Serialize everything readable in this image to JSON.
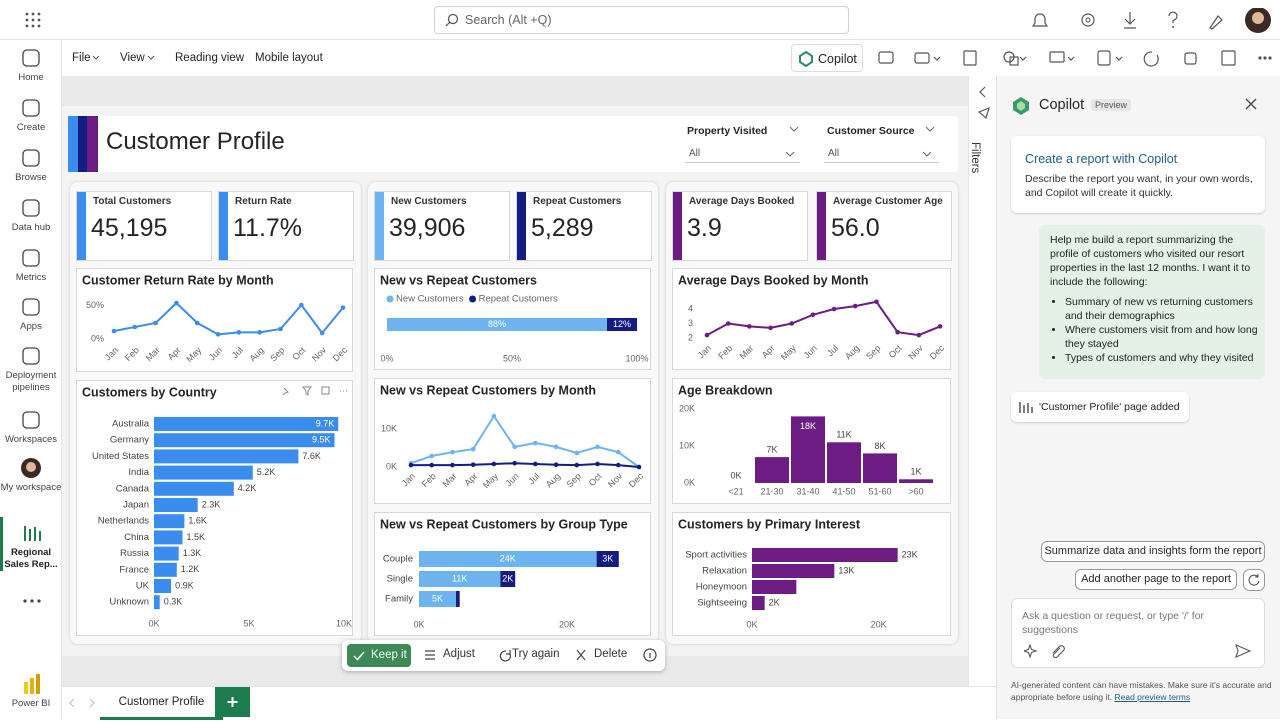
{
  "app": {
    "search": "Search (Alt +Q)",
    "brand": "Power BI"
  },
  "nav": [
    "Home",
    "Create",
    "Browse",
    "Data hub",
    "Metrics",
    "Apps",
    "Deployment pipelines",
    "Workspaces",
    "My workspace",
    "Regional Sales Rep..."
  ],
  "menu": [
    "File",
    "View",
    "Reading view",
    "Mobile layout"
  ],
  "copilot_button": "Copilot",
  "filters": "Filters",
  "tabs": [
    "Customer Profile"
  ],
  "actions": [
    "Keep it",
    "Adjust",
    "Try again",
    "Delete"
  ],
  "report": {
    "title": "Customer Profile",
    "slicers": [
      {
        "label": "Property Visited",
        "value": "All"
      },
      {
        "label": "Customer Source",
        "value": "All"
      }
    ],
    "kpis": [
      {
        "label": "Total Customers",
        "value": "45,195",
        "color": "#3b8ded"
      },
      {
        "label": "Return Rate",
        "value": "11.7%",
        "color": "#3b8ded"
      },
      {
        "label": "New Customers",
        "value": "39,906",
        "color": "#6cb4f0"
      },
      {
        "label": "Repeat Customers",
        "value": "5,289",
        "color": "#141c82"
      },
      {
        "label": "Average Days Booked",
        "value": "3.9",
        "color": "#6b1d84"
      },
      {
        "label": "Average Customer Age",
        "value": "56.0",
        "color": "#6b1d84"
      }
    ],
    "visuals": [
      {
        "title": "Customer Return Rate by Month",
        "type": "line",
        "markers": true,
        "categories": [
          "Jan",
          "Feb",
          "Mar",
          "Apr",
          "May",
          "Jun",
          "Jul",
          "Aug",
          "Sep",
          "Oct",
          "Nov",
          "Dec"
        ],
        "series": [
          {
            "color": "#3b8ded",
            "values": [
              12,
              18,
              24,
              54,
              24,
              7,
              10,
              10,
              15,
              51,
              9,
              47
            ]
          }
        ],
        "ylim": [
          0,
          60
        ],
        "yticks": [
          {
            "value": 0,
            "label": "0%"
          },
          {
            "value": 50,
            "label": "50%"
          }
        ]
      },
      {
        "title": "Customers by Country",
        "type": "barh",
        "categories": [
          "Australia",
          "Germany",
          "United States",
          "India",
          "Canada",
          "Japan",
          "Netherlands",
          "China",
          "Russia",
          "France",
          "UK",
          "Unknown"
        ],
        "series": [
          {
            "color": "#3b8ded",
            "values": [
              9700,
              9500,
              7600,
              5200,
              4200,
              2300,
              1600,
              1500,
              1300,
              1200,
              900,
              300
            ],
            "value_labels": [
              "9.7K",
              "9.5K",
              "7.6K",
              "5.2K",
              "4.2K",
              "2.3K",
              "1.6K",
              "1.5K",
              "1.3K",
              "1.2K",
              "0.9K",
              "0.3K"
            ]
          }
        ],
        "xlim": [
          0,
          10000
        ],
        "xticks": [
          {
            "value": 0,
            "label": "0K"
          },
          {
            "value": 5000,
            "label": "5K"
          },
          {
            "value": 10000,
            "label": "10K"
          }
        ]
      },
      {
        "title": "New vs Repeat Customers",
        "type": "barh",
        "legend": true,
        "series": [
          {
            "name": "New Customers",
            "color": "#6cb4f0",
            "values": [
              88
            ],
            "value_labels": [
              "88%"
            ]
          },
          {
            "name": "Repeat Customers",
            "color": "#141c82",
            "values": [
              12
            ],
            "value_labels": [
              "12%"
            ]
          }
        ],
        "xlim": [
          0,
          100
        ],
        "xticks": [
          {
            "value": 0,
            "label": "0%"
          },
          {
            "value": 50,
            "label": "50%"
          },
          {
            "value": 100,
            "label": "100%"
          }
        ]
      },
      {
        "title": "New vs Repeat Customers by Month",
        "type": "line",
        "markers": true,
        "categories": [
          "Jan",
          "Feb",
          "Mar",
          "Apr",
          "May",
          "Jun",
          "Jul",
          "Aug",
          "Sep",
          "Oct",
          "Nov",
          "Dec"
        ],
        "series": [
          {
            "color": "#6cb4f0",
            "values": [
              1000,
              2900,
              3900,
              4700,
              13400,
              5300,
              6300,
              5300,
              3700,
              5300,
              3900,
              0
            ]
          },
          {
            "color": "#141c82",
            "values": [
              500,
              500,
              500,
              600,
              800,
              1000,
              800,
              600,
              500,
              800,
              500,
              0
            ]
          }
        ],
        "ylim": [
          0,
          15000
        ],
        "yticks": [
          {
            "value": 0,
            "label": "0K"
          },
          {
            "value": 10000,
            "label": "10K"
          }
        ]
      },
      {
        "title": "New vs Repeat Customers by Group Type",
        "type": "barh",
        "categories": [
          "Couple",
          "Single",
          "Family"
        ],
        "series": [
          {
            "color": "#6cb4f0",
            "values": [
              24000,
              11000,
              5000
            ],
            "value_labels": [
              "24K",
              "11K",
              "5K"
            ]
          },
          {
            "color": "#141c82",
            "values": [
              3000,
              2000,
              500
            ],
            "value_labels": [
              "3K",
              "2K",
              null
            ]
          }
        ],
        "xlim": [
          0,
          30000
        ],
        "xticks": [
          {
            "value": 0,
            "label": "0K"
          },
          {
            "value": 20000,
            "label": "20K"
          }
        ]
      },
      {
        "title": "Average Days Booked by Month",
        "type": "line",
        "markers": true,
        "categories": [
          "Jan",
          "Feb",
          "Mar",
          "Apr",
          "May",
          "Jun",
          "Jul",
          "Aug",
          "Sep",
          "Oct",
          "Nov",
          "Dec"
        ],
        "series": [
          {
            "color": "#6b1d84",
            "values": [
              2.2,
              3.0,
              2.8,
              2.7,
              3.0,
              3.6,
              4.0,
              4.2,
              4.5,
              2.4,
              2.2,
              2.8
            ]
          }
        ],
        "ylim": [
          2,
          4.5
        ],
        "yticks": [
          2,
          3,
          4
        ]
      },
      {
        "title": "Age Breakdown",
        "type": "column",
        "categories": [
          "<21",
          "21-30",
          "31-40",
          "41-50",
          "51-60",
          ">60"
        ],
        "series": [
          {
            "color": "#6b1d84",
            "values": [
              0,
              7000,
              18000,
              11000,
              8000,
              1000
            ],
            "value_labels": [
              "0K",
              "7K",
              "18K",
              "11K",
              "8K",
              "1K"
            ]
          }
        ],
        "ylim": [
          0,
          20000
        ],
        "yticks": [
          {
            "value": 0,
            "label": "0K"
          },
          {
            "value": 10000,
            "label": "10K"
          },
          {
            "value": 20000,
            "label": "20K"
          }
        ]
      },
      {
        "title": "Customers by Primary Interest",
        "type": "barh",
        "categories": [
          "Sport activities",
          "Relaxation",
          "Honeymoon",
          "Sightseeing"
        ],
        "series": [
          {
            "color": "#6b1d84",
            "values": [
              23000,
              13000,
              7000,
              2000
            ],
            "value_labels": [
              "23K",
              "13K",
              null,
              "2K"
            ]
          }
        ],
        "xlim": [
          0,
          30000
        ],
        "xticks": [
          {
            "value": 0,
            "label": "0K"
          },
          {
            "value": 20000,
            "label": "20K"
          }
        ]
      }
    ]
  },
  "copilot": {
    "title": "Copilot",
    "badge": "Preview",
    "intro": {
      "title": "Create a report with Copilot",
      "text": "Describe the report you want, in your own words, and Copilot will create it quickly."
    },
    "prompt": {
      "text": "Help me build a report summarizing the profile of customers who visited our resort properties in the last 12 months. I want it to include the following:",
      "bullets": [
        "Summary of new vs returning customers and their demographics",
        "Where customers visit from and how long they stayed",
        "Types of customers and why they visited"
      ]
    },
    "status": "'Customer Profile' page added",
    "suggestions": [
      "Summarize data and insights form the report",
      "Add another page to the report"
    ],
    "placeholder": "Ask a question or request, or type '/' for suggestions",
    "disclaimer": "AI-generated content can have mistakes. Make sure it's accurate and appropriate before using it.",
    "terms": "Read preview terms"
  }
}
